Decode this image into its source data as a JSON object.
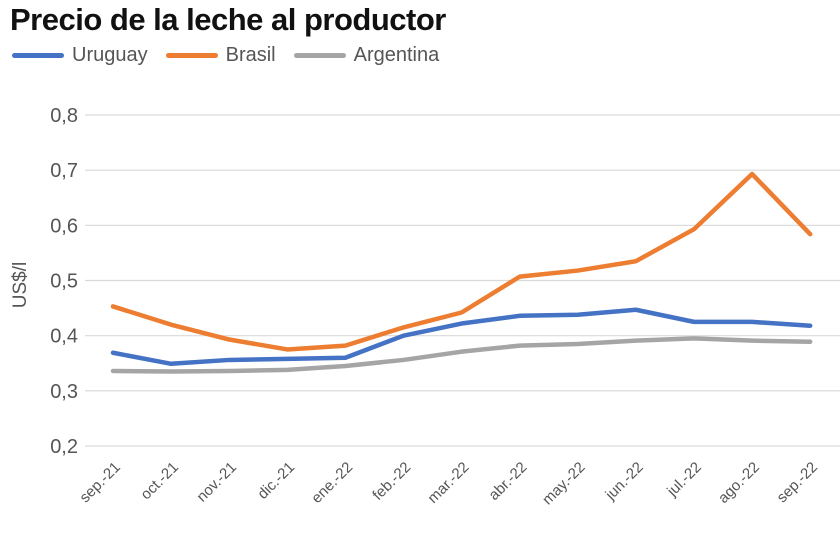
{
  "chart_data": {
    "type": "line",
    "title": "Precio de la leche al productor",
    "ylabel": "US$/l",
    "xlabel": "",
    "ylim": [
      0.2,
      0.8
    ],
    "yticks": [
      "0,2",
      "0,3",
      "0,4",
      "0,5",
      "0,6",
      "0,7",
      "0,8"
    ],
    "grid": true,
    "legend": "top-left",
    "categories": [
      "sep.-21",
      "oct.-21",
      "nov.-21",
      "dic.-21",
      "ene.-22",
      "feb.-22",
      "mar.-22",
      "abr.-22",
      "may.-22",
      "jun.-22",
      "jul.-22",
      "ago.-22",
      "sep.-22"
    ],
    "series": [
      {
        "name": "Uruguay",
        "color": "#4472c4",
        "values": [
          0.369,
          0.349,
          0.356,
          0.358,
          0.36,
          0.4,
          0.422,
          0.436,
          0.438,
          0.447,
          0.425,
          0.425,
          0.418
        ]
      },
      {
        "name": "Brasil",
        "color": "#ed7d31",
        "values": [
          0.453,
          0.42,
          0.393,
          0.375,
          0.382,
          0.415,
          0.442,
          0.507,
          0.518,
          0.535,
          0.593,
          0.693,
          0.584
        ]
      },
      {
        "name": "Argentina",
        "color": "#a5a5a5",
        "values": [
          0.336,
          0.335,
          0.336,
          0.338,
          0.345,
          0.356,
          0.371,
          0.382,
          0.385,
          0.391,
          0.395,
          0.391,
          0.389
        ]
      }
    ]
  }
}
